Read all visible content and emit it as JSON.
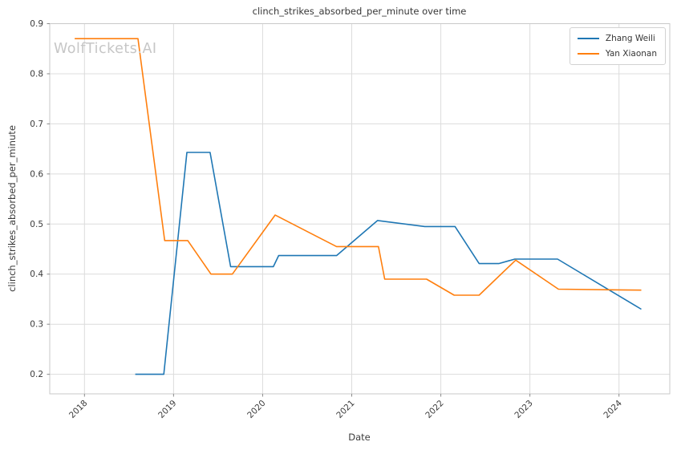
{
  "watermark": "WolfTickets.AI",
  "chart_data": {
    "type": "line",
    "title": "clinch_strikes_absorbed_per_minute over time",
    "xlabel": "Date",
    "ylabel": "clinch_strikes_absorbed_per_minute",
    "xlim": [
      2017.61,
      2024.57
    ],
    "ylim": [
      0.161,
      0.9
    ],
    "xticks": [
      2018,
      2019,
      2020,
      2021,
      2022,
      2023,
      2024
    ],
    "yticks": [
      0.2,
      0.3,
      0.4,
      0.5,
      0.6,
      0.7,
      0.8,
      0.9
    ],
    "grid": true,
    "legend_position": "upper right",
    "series": [
      {
        "name": "Zhang Weili",
        "color": "#1f77b4",
        "points": [
          [
            2018.57,
            0.2
          ],
          [
            2018.89,
            0.2
          ],
          [
            2019.15,
            0.643
          ],
          [
            2019.41,
            0.643
          ],
          [
            2019.64,
            0.415
          ],
          [
            2020.12,
            0.415
          ],
          [
            2020.18,
            0.437
          ],
          [
            2020.83,
            0.437
          ],
          [
            2021.29,
            0.507
          ],
          [
            2021.82,
            0.495
          ],
          [
            2022.16,
            0.495
          ],
          [
            2022.43,
            0.421
          ],
          [
            2022.65,
            0.421
          ],
          [
            2022.83,
            0.43
          ],
          [
            2023.31,
            0.43
          ],
          [
            2024.25,
            0.33
          ]
        ]
      },
      {
        "name": "Yan Xiaonan",
        "color": "#ff7f0e",
        "points": [
          [
            2017.89,
            0.87
          ],
          [
            2018.6,
            0.87
          ],
          [
            2018.9,
            0.467
          ],
          [
            2019.16,
            0.467
          ],
          [
            2019.42,
            0.4
          ],
          [
            2019.66,
            0.4
          ],
          [
            2020.14,
            0.518
          ],
          [
            2020.83,
            0.455
          ],
          [
            2021.3,
            0.455
          ],
          [
            2021.37,
            0.39
          ],
          [
            2021.84,
            0.39
          ],
          [
            2022.15,
            0.358
          ],
          [
            2022.43,
            0.358
          ],
          [
            2022.84,
            0.428
          ],
          [
            2023.32,
            0.37
          ],
          [
            2024.25,
            0.368
          ]
        ]
      }
    ]
  }
}
